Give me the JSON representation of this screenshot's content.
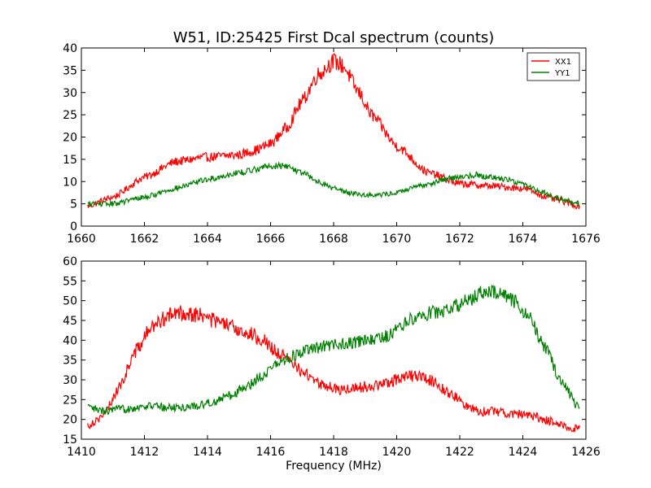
{
  "figure": {
    "background": "#ffffff"
  },
  "chart_data": [
    {
      "type": "line",
      "title": "W51, ID:25425 First Dcal spectrum (counts)",
      "xlabel": "",
      "ylabel": "",
      "xlim": [
        1660,
        1676
      ],
      "ylim": [
        0,
        40
      ],
      "xticks": [
        "1660",
        "1662",
        "1664",
        "1666",
        "1668",
        "1670",
        "1672",
        "1674",
        "1676"
      ],
      "yticks": [
        "0",
        "5",
        "10",
        "15",
        "20",
        "25",
        "30",
        "35",
        "40"
      ],
      "legend": {
        "position": "top-right",
        "entries": [
          "XX1",
          "YY1"
        ]
      },
      "grid": false,
      "series": [
        {
          "name": "XX1",
          "color": "#ff0000",
          "x": [
            1660.2,
            1661,
            1662,
            1663,
            1664,
            1665,
            1665.5,
            1666,
            1666.5,
            1667,
            1667.5,
            1668,
            1668.3,
            1668.8,
            1669.2,
            1670,
            1671,
            1672,
            1673,
            1674,
            1675,
            1675.8
          ],
          "y": [
            4.5,
            6.5,
            11,
            14.5,
            15.5,
            16,
            17,
            18.5,
            22,
            28,
            34,
            37,
            36,
            30,
            25,
            18,
            12,
            9.5,
            9,
            8.5,
            6,
            4.5
          ]
        },
        {
          "name": "YY1",
          "color": "#008000",
          "x": [
            1660.2,
            1661,
            1662,
            1663,
            1664,
            1665,
            1666,
            1666.5,
            1667,
            1667.5,
            1668,
            1668.5,
            1669,
            1669.5,
            1670,
            1670.5,
            1671,
            1671.5,
            1672,
            1672.5,
            1673,
            1673.5,
            1674,
            1674.5,
            1675,
            1675.8
          ],
          "y": [
            5,
            5,
            6.5,
            8.5,
            10.5,
            12,
            13.5,
            13.5,
            12,
            10,
            8.5,
            7.5,
            7,
            7,
            7.5,
            8.5,
            9.5,
            10.5,
            11,
            11.5,
            11,
            10.5,
            9.5,
            8,
            6.5,
            5
          ]
        }
      ]
    },
    {
      "type": "line",
      "title": "",
      "xlabel": "Frequency (MHz)",
      "ylabel": "",
      "xlim": [
        1410,
        1426
      ],
      "ylim": [
        15,
        60
      ],
      "xticks": [
        "1410",
        "1412",
        "1414",
        "1416",
        "1418",
        "1420",
        "1422",
        "1424",
        "1426"
      ],
      "yticks": [
        "15",
        "20",
        "25",
        "30",
        "35",
        "40",
        "45",
        "50",
        "55",
        "60"
      ],
      "grid": false,
      "series": [
        {
          "name": "XX1",
          "color": "#ff0000",
          "x": [
            1410.2,
            1410.7,
            1411.2,
            1411.7,
            1412.2,
            1412.7,
            1413.2,
            1413.7,
            1414.2,
            1414.7,
            1415.2,
            1415.7,
            1416.2,
            1416.7,
            1417.2,
            1417.7,
            1418.2,
            1418.7,
            1419.2,
            1419.7,
            1420.2,
            1420.7,
            1421.2,
            1421.7,
            1422.2,
            1422.7,
            1423.2,
            1423.7,
            1424.2,
            1424.7,
            1425.2,
            1425.8
          ],
          "y": [
            18.5,
            21,
            28,
            37,
            43,
            46,
            47,
            46.5,
            45,
            43.5,
            42,
            40.5,
            37,
            34,
            31,
            28.5,
            27.5,
            28,
            28.5,
            29,
            31,
            31,
            29.5,
            26.5,
            23.5,
            22,
            22,
            21.5,
            21,
            20,
            18.5,
            17.5
          ]
        },
        {
          "name": "YY1",
          "color": "#008000",
          "x": [
            1410.2,
            1410.7,
            1411.2,
            1411.7,
            1412.2,
            1412.7,
            1413.2,
            1413.7,
            1414.2,
            1414.7,
            1415.2,
            1415.7,
            1416.2,
            1416.7,
            1417.2,
            1417.7,
            1418.2,
            1418.7,
            1419.2,
            1419.7,
            1420.2,
            1420.7,
            1421.2,
            1421.7,
            1422.2,
            1422.7,
            1423.2,
            1423.7,
            1424.2,
            1424.7,
            1425.2,
            1425.8
          ],
          "y": [
            23,
            22,
            22.5,
            23,
            23.5,
            23,
            23,
            23.5,
            24.5,
            26,
            28,
            31,
            34,
            36,
            37.5,
            38.5,
            39,
            39.5,
            40,
            41,
            44,
            46.5,
            47,
            48,
            50,
            52,
            52,
            50,
            46,
            38,
            30,
            22.5
          ]
        }
      ]
    }
  ]
}
